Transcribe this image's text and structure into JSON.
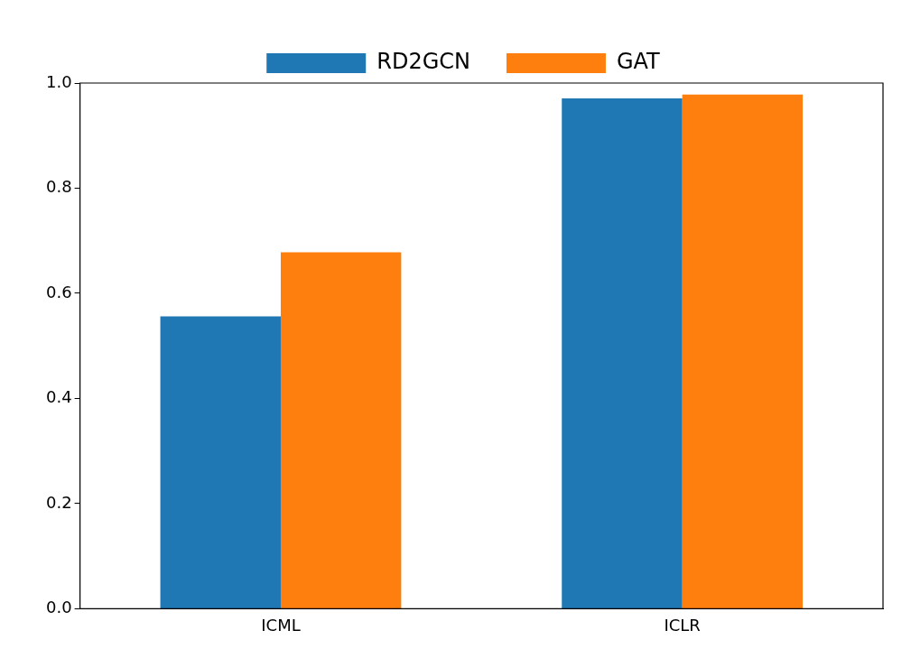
{
  "chart_data": {
    "type": "bar",
    "categories": [
      "ICML",
      "ICLR"
    ],
    "series": [
      {
        "name": "RD2GCN",
        "color": "#1f77b4",
        "values": [
          0.556,
          0.971
        ]
      },
      {
        "name": "GAT",
        "color": "#ff7f0e",
        "values": [
          0.678,
          0.978
        ]
      }
    ],
    "ylim": [
      0,
      1
    ],
    "yticks": [
      {
        "value": 0,
        "label": "0.0"
      },
      {
        "value": 0.2,
        "label": "0.2"
      },
      {
        "value": 0.4,
        "label": "0.4"
      },
      {
        "value": 0.6,
        "label": "0.6"
      },
      {
        "value": 0.8,
        "label": "0.8"
      },
      {
        "value": 1,
        "label": "1.0"
      }
    ],
    "grid": false,
    "legend": "top"
  }
}
